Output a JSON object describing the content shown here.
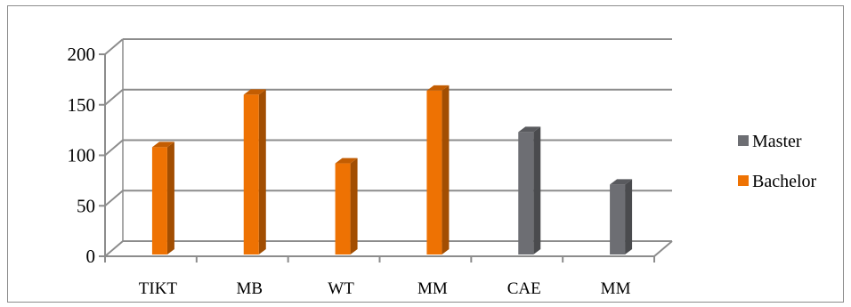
{
  "chart_data": {
    "type": "bar",
    "style": "3d-column",
    "categories": [
      "TIKT",
      "MB",
      "WT",
      "MM",
      "CAE",
      "MM"
    ],
    "series": [
      {
        "name": "Master",
        "color": "#6d6e73",
        "values": [
          null,
          null,
          null,
          null,
          123,
          71
        ]
      },
      {
        "name": "Bachelor",
        "color": "#ee7203",
        "values": [
          108,
          160,
          92,
          164,
          null,
          null
        ]
      }
    ],
    "yticks": [
      0,
      50,
      100,
      150,
      200
    ],
    "ylim": [
      0,
      200
    ],
    "grid": true,
    "legend_position": "right"
  }
}
